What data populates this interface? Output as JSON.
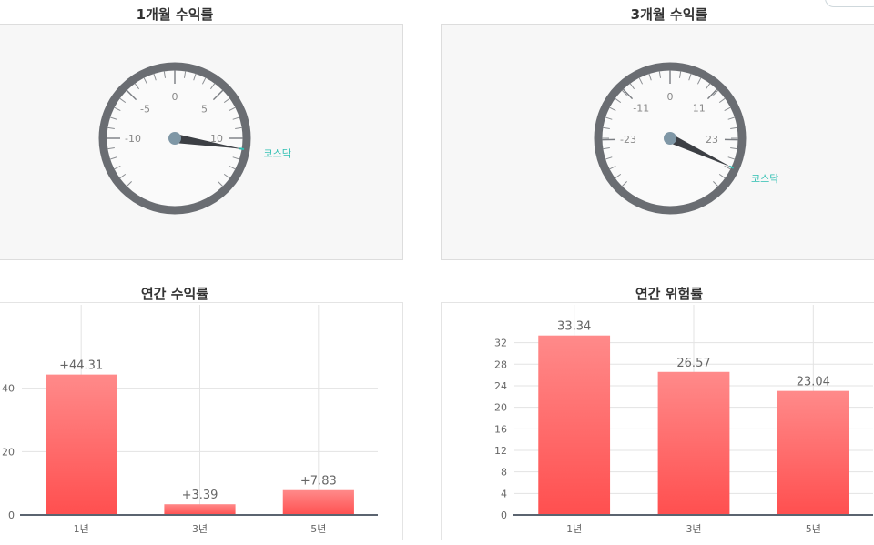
{
  "colors": {
    "gauge_ring": "#6a6d72",
    "needle": "#3c3f44",
    "needle_hub": "#7f97a6",
    "benchmark": "#2ebfb2",
    "bar_top": "#ff8a8a",
    "bar_bottom": "#ff4f4f",
    "grid": "#e3e3e3",
    "axis": "#5b6470"
  },
  "chart_data": [
    {
      "type": "gauge",
      "title": "1개월 수익률",
      "ticks": [
        -10,
        -5,
        0,
        5,
        10
      ],
      "tick_labels": [
        "-10",
        "-5",
        "0",
        "5",
        "10"
      ],
      "range": [
        -15,
        15
      ],
      "needle_value": 11,
      "benchmark": {
        "label": "코스닥",
        "value": 11
      }
    },
    {
      "type": "gauge",
      "title": "3개월 수익률",
      "ticks": [
        -23,
        -11,
        0,
        11,
        23
      ],
      "tick_labels": [
        "-23",
        "-11",
        "0",
        "11",
        "23"
      ],
      "range": [
        -34,
        34
      ],
      "needle_value": 29,
      "benchmark": {
        "label": "코스닥",
        "value": 29
      }
    },
    {
      "type": "bar",
      "title": "연간 수익률",
      "categories": [
        "1년",
        "3년",
        "5년"
      ],
      "values": [
        44.31,
        3.39,
        7.83
      ],
      "value_labels": [
        "+44.31",
        "+3.39",
        "+7.83"
      ],
      "yticks": [
        0,
        20,
        40
      ],
      "ytick_labels": [
        "0",
        "20",
        "40"
      ],
      "ylim": [
        0,
        62
      ]
    },
    {
      "type": "bar",
      "title": "연간 위험률",
      "categories": [
        "1년",
        "3년",
        "5년"
      ],
      "values": [
        33.34,
        26.57,
        23.04
      ],
      "value_labels": [
        "33.34",
        "26.57",
        "23.04"
      ],
      "yticks": [
        0,
        4,
        8,
        12,
        16,
        20,
        24,
        28,
        32
      ],
      "ytick_labels": [
        "0",
        "4",
        "8",
        "12",
        "16",
        "20",
        "24",
        "28",
        "32"
      ],
      "ylim": [
        0,
        36.5
      ]
    }
  ]
}
